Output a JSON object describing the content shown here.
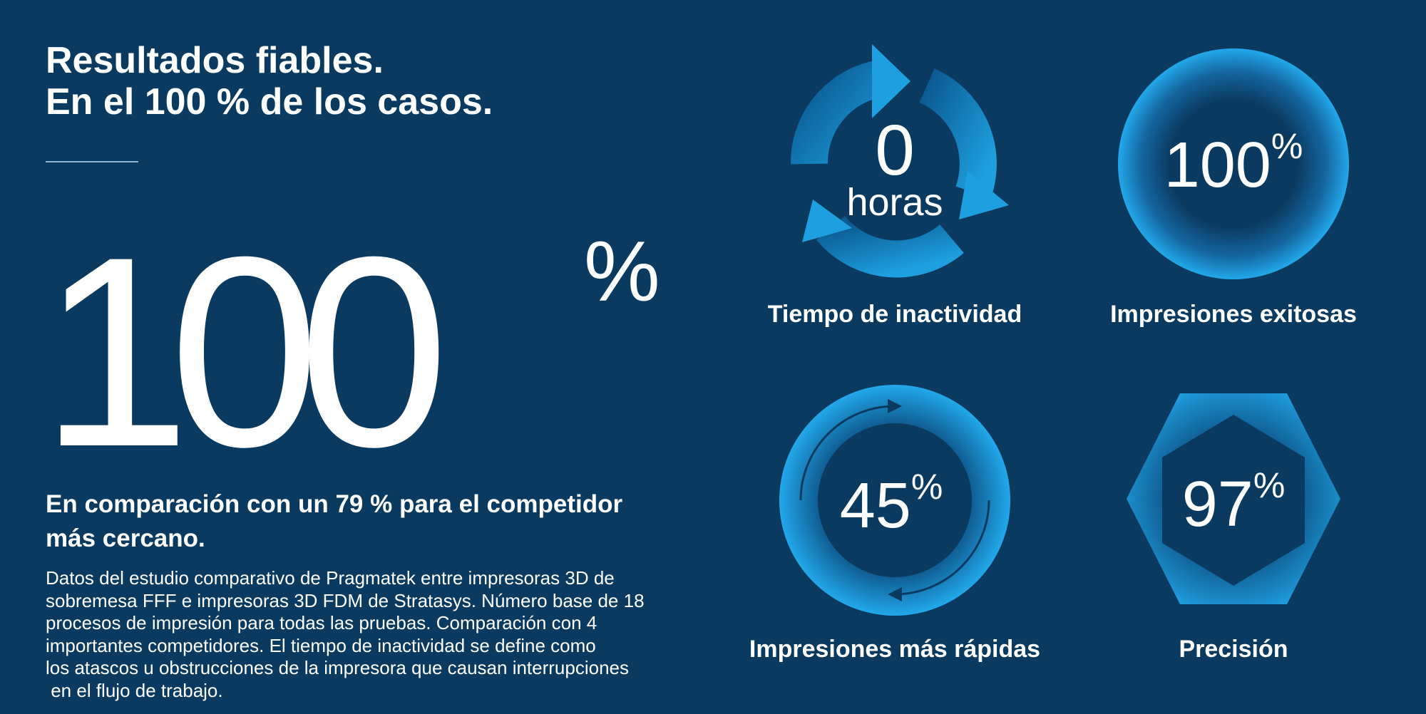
{
  "headline": {
    "line1": "Resultados fiables.",
    "line2": "En el 100 % de los casos."
  },
  "hero": {
    "number": "100",
    "unit": "%"
  },
  "comparison": {
    "line1": "En comparación con un 79 % para el competidor",
    "line2": "más cercano."
  },
  "footnote": {
    "lines": [
      "Datos del estudio comparativo de Pragmatek entre impresoras 3D de",
      "sobremesa FFF e impresoras 3D FDM de Stratasys. Número base de 18",
      "procesos de impresión para todas las pruebas. Comparación con 4",
      "importantes competidores. El tiempo de inactividad se define como",
      "los atascos u obstrucciones de la impresora que causan interrupciones",
      " en el flujo de trabajo."
    ]
  },
  "stats": {
    "downtime": {
      "value": "0",
      "unit": "horas",
      "label": "Tiempo de inactividad",
      "icon": "refresh-cycle-icon"
    },
    "success": {
      "value": "100",
      "unit": "%",
      "label": "Impresiones exitosas",
      "icon": "glow-circle-icon"
    },
    "faster": {
      "value": "45",
      "unit": "%",
      "label": "Impresiones más rápidas",
      "icon": "speed-ring-icon"
    },
    "precision": {
      "value": "97",
      "unit": "%",
      "label": "Precisión",
      "icon": "hexagon-icon"
    }
  },
  "colors": {
    "background": "#0a3a60",
    "accent": "#1ea0e0",
    "light_accent": "#cfeaf7",
    "text": "#ffffff"
  }
}
